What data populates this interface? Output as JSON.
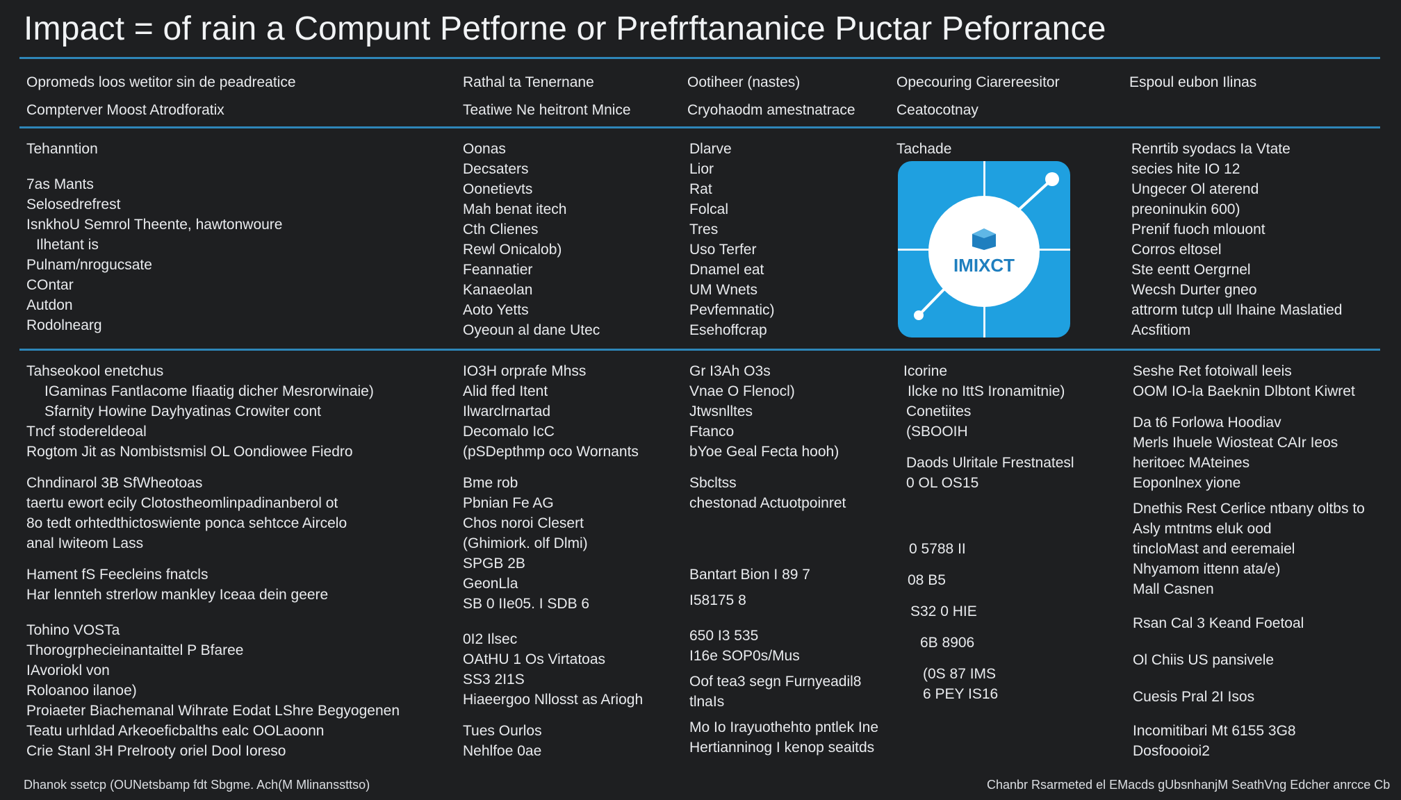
{
  "title": "Impact = of rain a Compunt Petforne or Prefrftananice Puctar Peforrance",
  "header": {
    "col1": [
      "Opromeds loos wetitor sin de peadreatice",
      "Compterver Moost Atrodforatix"
    ],
    "col2": [
      "Rathal ta Tenernane",
      "Teatiwe Ne heitront Mnice"
    ],
    "col3": [
      "Ootiheer (nastes)",
      "Cryohaodm amestnatrace"
    ],
    "col4": [
      "Opecouring Ciarereesitor",
      "Ceatocotnay"
    ],
    "col5": [
      "Espoul eubon Ilinas"
    ]
  },
  "section1": {
    "col1": [
      "Tehanntion",
      "",
      "7as Mants",
      "Selosedrefrest",
      "IsnkhoU Semrol Theente, hawtonwoure",
      "Ilhetant is",
      "Pulnam/nrogucsate",
      "COntar",
      "Autdon",
      "Rodolnearg"
    ],
    "col2": [
      "Oonas",
      "Decsaters",
      "Oonetievts",
      "Mah benat itech",
      "Cth Clienes",
      "Rewl Onicalob)",
      "Feannatier",
      "Kanaeolan",
      "Aoto Yetts",
      "Oyeoun al dane Utec"
    ],
    "col3": [
      "Dlarve",
      "Lior",
      "Rat",
      "Folcal",
      "Tres",
      "Uso Terfer",
      "Dnamel eat",
      "UM Wnets",
      "Pevfemnatic)",
      "Esehoffcrap"
    ],
    "col4": [
      "Tachade"
    ],
    "col5": [
      "Renrtib syodacs Ia Vtate",
      "secies hite IO 12",
      "Ungecer Ol aterend",
      "preoninukin 600)",
      "Prenif fuoch mlouont",
      "Corros eltosel",
      "Ste eentt Oergrnel",
      "Wecsh Durter gneo",
      "attrorm tutcp ull Ihaine Maslatied",
      "Acsfitiom"
    ],
    "tile_label": "IMIXCT"
  },
  "section2": {
    "col1": [
      "Tahseokool enetchus",
      "IGaminas Fantlacome Ifiaatig dicher Mesrorwinaie)",
      "Sfarnity Howine Dayhyatinas Crowiter cont",
      "Tncf stodereldeoal",
      "Rogtom Jit as Nombistsmisl OL Oondiowee Fiedro",
      "",
      "Chndinarol 3B SfWheotoas",
      "taertu ewort ecily Clotostheomlinpadinanberol ot",
      "8o tedt orhtedthictoswiente ponca sehtcce Aircelo",
      "anal Iwiteom Lass",
      "",
      "Hament fS Feecleins fnatcls",
      "Har lennteh strerlow mankley Iceaa dein geere",
      "",
      "Tohino VOSTa",
      "Thorogrphecieinantaittel P Bfaree",
      "IAvoriokl von",
      "Roloanoo ilanoe)",
      "Proiaeter Biachemanal Wihrate Eodat LShre Begyogenen",
      "Teatu urhldad Arkeoeficbalths ealc OOLaoonn",
      "Crie Stanl 3H Prelrooty oriel Dool Ioreso"
    ],
    "col2": [
      "IO3H orprafe Mhss",
      "Alid ffed Itent",
      "Ilwarclrnartad",
      "Decomalo IcC",
      "(pSDepthmp oco Wornants",
      "",
      "Bme rob",
      "Pbnian Fe AG",
      "Chos noroi Clesert",
      "(Ghimiork. olf Dlmi)",
      "SPGB 2B",
      "GeonLla",
      "SB 0 IIe05. I SDB 6",
      "",
      "0I2 Ilsec",
      "OAtHU 1 Os Virtatoas",
      "SS3 2I1S",
      "Hiaeergoo Nllosst as Ariogh",
      "",
      "Tues Ourlos",
      "Nehlfoe 0ae"
    ],
    "col3": [
      "Gr I3Ah O3s",
      "Vnae O Flenocl)",
      "Jtwsnlltes",
      "Ftanco",
      "bYoe Geal Fecta hooh)",
      "",
      "Sbcltss",
      "chestonad Actuotpoinret",
      "",
      "",
      "",
      "Bantart Bion I 89 7",
      "I58175 8",
      "",
      "650 I3 535",
      "I16e SOP0s/Mus",
      "Oof tea3 segn Furnyeadil8",
      "tlnaIs",
      "Mo Io Irayuothehto pntlek Ine",
      "Hertianninog I kenop seaitds"
    ],
    "col4": [
      "Icorine",
      "Ilcke no IttS Ironamitnie)",
      "Conetiites",
      "(SBOOIH",
      "",
      "Daods Ulritale Frestnatesl",
      "0 OL OS15",
      "",
      "",
      "0 5788 II",
      "",
      "08 B5",
      "",
      "S32 0 HIE",
      "",
      "6B 8906",
      "",
      "(0S 87 IMS",
      "6 PEY IS16"
    ],
    "col5": [
      "Seshe Ret fotoiwall leeis",
      "OOM IO-la Baeknin Dlbtont Kiwret",
      "",
      "Da t6 Forlowa Hoodiav",
      "Merls Ihuele Wiosteat CAIr Ieos",
      "heritoec MAteines",
      "Eoponlnex yione",
      "",
      "Dnethis Rest Cerlice ntbany oltbs to",
      "Asly mtntms eluk ood",
      "tincloMast and eeremaiel",
      "Nhyamom ittenn ata/e)",
      "Mall Casnen",
      "",
      "Rsan Cal 3 Keand Foetoal",
      "",
      "Ol Chiis US pansivele",
      "",
      "Cuesis Pral 2I Isos",
      "",
      "Incomitibari Mt 6155 3G8",
      "Dosfoooioi2"
    ]
  },
  "footer": {
    "left": "Dhanok ssetcp (OUNetsbamp fdt Sbgme. Ach(M Mlinanssttso)",
    "right": "Chanbr Rsarmeted el EMacds gUbsnhanjM SeathVng Edcher anrcce Cb"
  },
  "colors": {
    "background": "#1e1f21",
    "rule": "#2e86b8",
    "tile": "#1fa0e0",
    "text": "#eceef0"
  },
  "icons": [
    "impact-app-icon"
  ]
}
